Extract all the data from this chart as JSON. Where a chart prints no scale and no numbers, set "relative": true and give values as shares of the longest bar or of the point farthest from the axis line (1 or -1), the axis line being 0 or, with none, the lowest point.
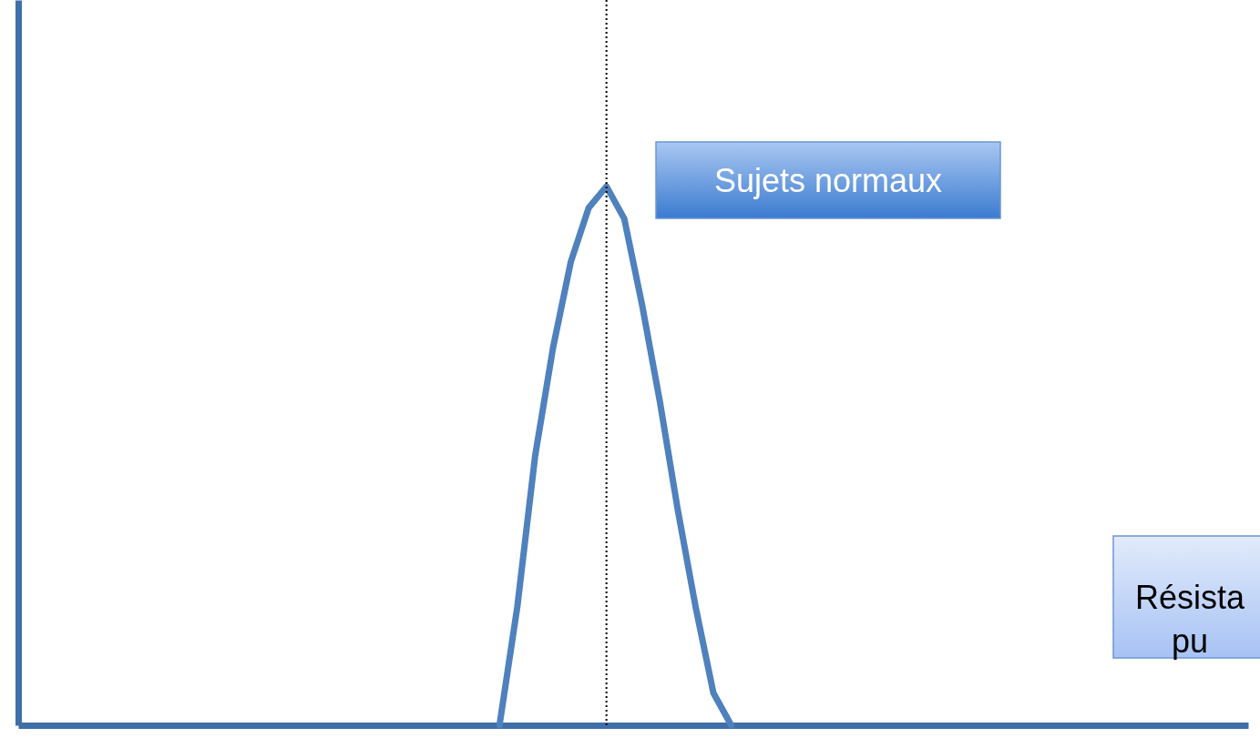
{
  "chart_data": {
    "type": "line",
    "relative": true,
    "tick_labels": false,
    "categories": [
      null,
      null,
      null,
      null,
      null,
      null,
      null,
      null,
      null,
      null,
      null,
      null,
      null,
      null,
      null,
      null,
      null,
      null,
      null,
      null,
      null,
      null,
      null,
      null,
      null,
      null,
      null,
      null,
      null,
      null,
      null,
      null,
      null,
      null,
      null,
      null,
      null,
      null,
      null,
      null,
      null,
      null,
      null,
      null,
      null,
      null,
      null,
      null,
      null,
      null,
      null,
      null,
      null,
      null,
      null,
      null,
      null,
      null,
      null,
      null,
      null,
      null,
      null,
      null,
      null,
      null,
      null,
      null,
      null,
      null
    ],
    "series": [
      {
        "color": "#4f81bd",
        "values": [
          null,
          null,
          null,
          null,
          null,
          null,
          null,
          null,
          null,
          null,
          null,
          null,
          null,
          null,
          null,
          null,
          null,
          null,
          null,
          null,
          null,
          null,
          null,
          null,
          null,
          null,
          null,
          0,
          0.22,
          0.5,
          0.7,
          0.86,
          0.96,
          1,
          0.94,
          0.78,
          0.6,
          0.4,
          0.22,
          0.06,
          0,
          null,
          null,
          null,
          null,
          null,
          null,
          null,
          null,
          null,
          null,
          null,
          null,
          null,
          null,
          null,
          null,
          null,
          null,
          null,
          null,
          null,
          null,
          null,
          null,
          null,
          null,
          null,
          null,
          null
        ]
      }
    ],
    "annotations": [
      "Sujets normaux",
      "Résista\npu"
    ]
  }
}
